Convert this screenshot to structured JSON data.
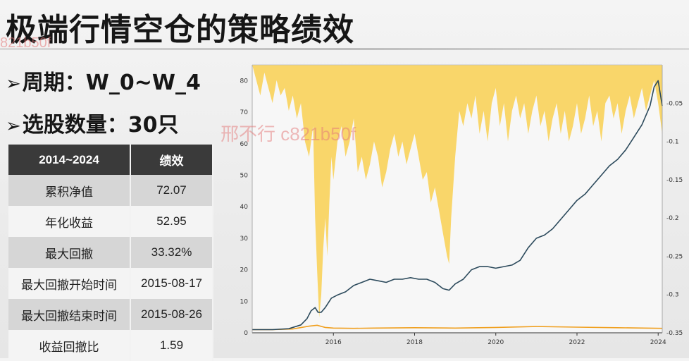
{
  "slide": {
    "title": "极端行情空仓的策略绩效",
    "bullet_period_label": "周期：",
    "bullet_period_value": "W_0~W_4",
    "bullet_count_label": "选股数量：",
    "bullet_count_value": "30只",
    "watermark": "邢不行 c821b50f",
    "watermark_small": "821b50f"
  },
  "table": {
    "headers": [
      "2014~2024",
      "绩效"
    ],
    "rows": [
      [
        "累积净值",
        "72.07"
      ],
      [
        "年化收益",
        "52.95"
      ],
      [
        "最大回撤",
        "33.32%"
      ],
      [
        "最大回撤开始时间",
        "2015-08-17"
      ],
      [
        "最大回撤结束时间",
        "2015-08-26"
      ],
      [
        "收益回撤比",
        "1.59"
      ]
    ]
  },
  "colors": {
    "net_value_line": "#2c4a5c",
    "benchmark_line": "#f0a020",
    "drawdown_fill": "#f8d15a",
    "header_bg": "#3a3a3a"
  },
  "chart_data": {
    "type": "line",
    "x_ticks": [
      "2016",
      "2018",
      "2020",
      "2022",
      "2024"
    ],
    "y_left_ticks": [
      "0",
      "10",
      "20",
      "30",
      "40",
      "50",
      "60",
      "70",
      "80"
    ],
    "y_right_ticks": [
      "-0.05",
      "-0.1",
      "-0.15",
      "-0.2",
      "-0.25",
      "-0.3",
      "-0.35"
    ],
    "xlim": [
      2014.0,
      2024.1
    ],
    "ylim_left": [
      0,
      85
    ],
    "ylim_right": [
      -0.35,
      0
    ],
    "series": [
      {
        "kind": "net_value",
        "x": [
          2014.0,
          2014.5,
          2014.9,
          2015.2,
          2015.35,
          2015.45,
          2015.55,
          2015.62,
          2015.7,
          2015.8,
          2015.95,
          2016.1,
          2016.3,
          2016.5,
          2016.7,
          2016.9,
          2017.1,
          2017.3,
          2017.5,
          2017.7,
          2017.9,
          2018.1,
          2018.3,
          2018.5,
          2018.7,
          2018.85,
          2019.0,
          2019.2,
          2019.4,
          2019.6,
          2019.8,
          2020.0,
          2020.2,
          2020.4,
          2020.6,
          2020.8,
          2021.0,
          2021.2,
          2021.4,
          2021.6,
          2021.8,
          2022.0,
          2022.2,
          2022.4,
          2022.6,
          2022.8,
          2023.0,
          2023.2,
          2023.4,
          2023.6,
          2023.8,
          2023.9,
          2024.0,
          2024.1
        ],
        "y": [
          1,
          1,
          1.3,
          2.5,
          4.5,
          7,
          8,
          6.5,
          6.5,
          8,
          11,
          12,
          13,
          15,
          16,
          17,
          16.5,
          16,
          17,
          17,
          17.5,
          17,
          17,
          16,
          14,
          13.5,
          15.5,
          17,
          20,
          21,
          21,
          20.5,
          21,
          21.5,
          23,
          27,
          30,
          31,
          33,
          36,
          39,
          42,
          44,
          47,
          50,
          53,
          55,
          58,
          62,
          66,
          72,
          78,
          80,
          72
        ]
      },
      {
        "kind": "benchmark",
        "x": [
          2014.0,
          2014.5,
          2015.0,
          2015.4,
          2015.6,
          2015.8,
          2016.0,
          2016.5,
          2017.0,
          2018.0,
          2019.0,
          2020.0,
          2021.0,
          2022.0,
          2023.0,
          2024.1
        ],
        "y": [
          1,
          1,
          1.2,
          2.1,
          2.4,
          1.7,
          1.5,
          1.4,
          1.5,
          1.6,
          1.5,
          1.7,
          2.0,
          1.8,
          1.6,
          1.4
        ]
      },
      {
        "kind": "drawdown",
        "x": [
          2014.0,
          2014.1,
          2014.2,
          2014.3,
          2014.4,
          2014.5,
          2014.6,
          2014.7,
          2014.8,
          2014.9,
          2015.0,
          2015.1,
          2015.2,
          2015.3,
          2015.4,
          2015.5,
          2015.55,
          2015.6,
          2015.65,
          2015.7,
          2015.75,
          2015.8,
          2015.85,
          2015.9,
          2015.95,
          2016.0,
          2016.1,
          2016.2,
          2016.3,
          2016.4,
          2016.5,
          2016.6,
          2016.7,
          2016.8,
          2016.9,
          2017.0,
          2017.1,
          2017.2,
          2017.3,
          2017.4,
          2017.5,
          2017.6,
          2017.7,
          2017.8,
          2017.9,
          2018.0,
          2018.1,
          2018.2,
          2018.3,
          2018.4,
          2018.5,
          2018.6,
          2018.7,
          2018.8,
          2018.85,
          2018.9,
          2019.0,
          2019.1,
          2019.2,
          2019.3,
          2019.4,
          2019.5,
          2019.6,
          2019.7,
          2019.8,
          2019.9,
          2020.0,
          2020.1,
          2020.2,
          2020.3,
          2020.4,
          2020.5,
          2020.6,
          2020.7,
          2020.8,
          2020.9,
          2021.0,
          2021.1,
          2021.2,
          2021.3,
          2021.4,
          2021.5,
          2021.6,
          2021.7,
          2021.8,
          2021.9,
          2022.0,
          2022.1,
          2022.2,
          2022.3,
          2022.4,
          2022.5,
          2022.6,
          2022.7,
          2022.8,
          2022.9,
          2023.0,
          2023.1,
          2023.2,
          2023.3,
          2023.4,
          2023.5,
          2023.6,
          2023.7,
          2023.8,
          2023.9,
          2024.0,
          2024.1
        ],
        "y": [
          0,
          -0.02,
          -0.04,
          -0.01,
          -0.03,
          -0.05,
          -0.02,
          -0.04,
          -0.03,
          -0.06,
          -0.04,
          -0.07,
          -0.05,
          -0.1,
          -0.12,
          -0.08,
          -0.2,
          -0.27,
          -0.33,
          -0.3,
          -0.24,
          -0.2,
          -0.25,
          -0.18,
          -0.12,
          -0.15,
          -0.1,
          -0.08,
          -0.12,
          -0.1,
          -0.07,
          -0.14,
          -0.12,
          -0.15,
          -0.13,
          -0.1,
          -0.12,
          -0.16,
          -0.14,
          -0.11,
          -0.09,
          -0.12,
          -0.1,
          -0.13,
          -0.11,
          -0.09,
          -0.12,
          -0.15,
          -0.14,
          -0.18,
          -0.16,
          -0.19,
          -0.22,
          -0.25,
          -0.26,
          -0.2,
          -0.12,
          -0.06,
          -0.08,
          -0.05,
          -0.07,
          -0.04,
          -0.09,
          -0.06,
          -0.1,
          -0.05,
          -0.03,
          -0.08,
          -0.05,
          -0.1,
          -0.06,
          -0.04,
          -0.07,
          -0.05,
          -0.09,
          -0.06,
          -0.04,
          -0.08,
          -0.06,
          -0.1,
          -0.07,
          -0.05,
          -0.09,
          -0.06,
          -0.1,
          -0.08,
          -0.05,
          -0.09,
          -0.07,
          -0.04,
          -0.08,
          -0.06,
          -0.1,
          -0.05,
          -0.04,
          -0.07,
          -0.05,
          -0.09,
          -0.06,
          -0.04,
          -0.07,
          -0.05,
          -0.03,
          -0.06,
          -0.04,
          -0.02,
          -0.05,
          -0.09
        ]
      }
    ],
    "legend": "none",
    "grid": false
  }
}
